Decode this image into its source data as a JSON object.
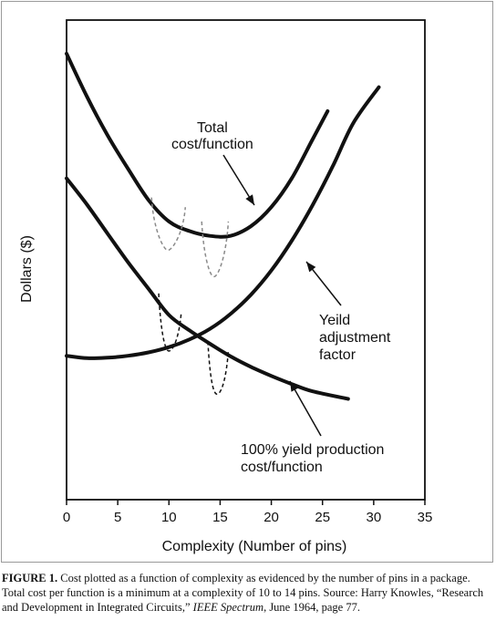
{
  "chart_data": {
    "type": "line",
    "xlabel": "Complexity (Number of pins)",
    "ylabel": "Dollars ($)",
    "xlim": [
      0,
      35
    ],
    "xticks": [
      0,
      5,
      10,
      15,
      20,
      25,
      30,
      35
    ],
    "ylim": [
      0,
      100
    ],
    "grid": false,
    "series": [
      {
        "name": "Total cost/function",
        "x": [
          0,
          2,
          4,
          6,
          8,
          10,
          12,
          14,
          16,
          18,
          20,
          22,
          24,
          25.5
        ],
        "y": [
          93,
          84,
          76,
          69,
          62.5,
          58,
          56,
          55,
          55,
          57,
          61,
          67,
          75,
          81
        ]
      },
      {
        "name": "Yeild adjustment factor",
        "x": [
          0,
          2,
          4,
          6,
          8,
          10,
          12,
          14,
          16,
          18,
          20,
          22,
          24,
          26,
          28,
          30.5
        ],
        "y": [
          30,
          29.5,
          29.6,
          30,
          30.7,
          31.8,
          33.4,
          35.6,
          38.7,
          42.7,
          47.8,
          54,
          61.3,
          69.5,
          78.5,
          86
        ]
      },
      {
        "name": "100% yield production cost/function",
        "x": [
          0,
          2,
          4,
          6,
          8,
          10,
          12,
          14,
          16,
          18,
          20,
          22,
          24,
          27.5
        ],
        "y": [
          67,
          61.5,
          55.5,
          49.5,
          44,
          38.5,
          35.3,
          32.5,
          29.9,
          27.7,
          25.8,
          24.1,
          22.6,
          21
        ]
      }
    ],
    "annotations": {
      "total_line1": "Total",
      "total_line2": "cost/function",
      "yield_line1": "Yeild",
      "yield_line2": "adjustment",
      "yield_line3": "factor",
      "prod_line1": "100% yield production",
      "prod_line2": "cost/function"
    },
    "colors": {
      "curve": "#111111",
      "dashed_upper": "#8a8a8a",
      "dashed_lower": "#111111"
    }
  },
  "caption": {
    "label": "FIGURE 1.",
    "text1": " Cost plotted as a function of complexity as evidenced by the number of pins in a package. Total cost per function is a minimum at a complexity of 10 to 14 pins. Source: Harry Knowles, “Research and Development in Integrated Circuits,” ",
    "italic": "IEEE Spectrum",
    "text2": ", June 1964, page 77."
  }
}
